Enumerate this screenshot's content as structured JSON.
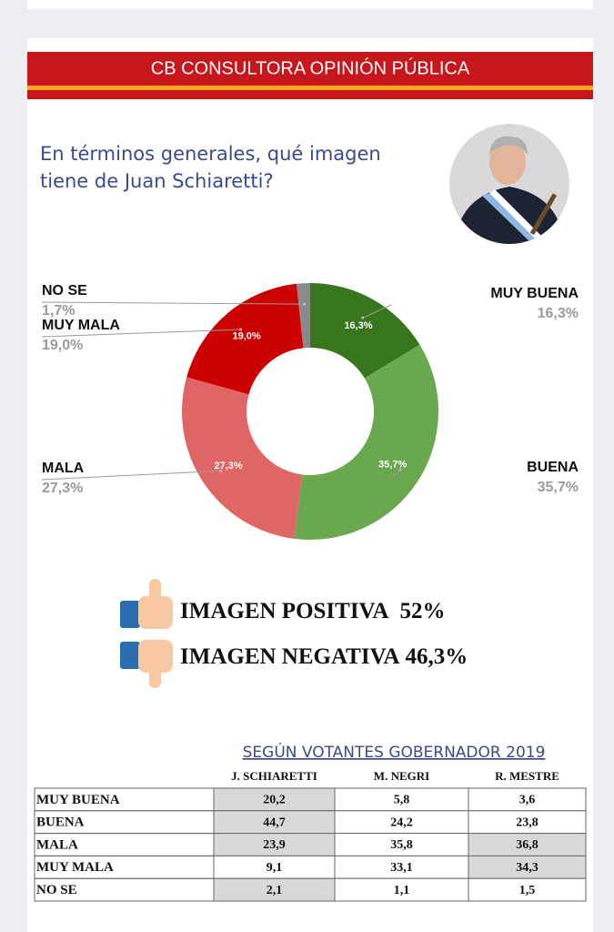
{
  "header": {
    "title": "CB CONSULTORA OPINIÓN PÚBLICA"
  },
  "question": {
    "lines": [
      "En términos generales, qué imagen",
      "tiene de Juan Schiaretti?"
    ]
  },
  "chart_data": {
    "type": "pie",
    "donut": true,
    "categories": [
      "MUY BUENA",
      "BUENA",
      "MALA",
      "MUY MALA",
      "NO SE"
    ],
    "values": [
      16.3,
      35.7,
      27.3,
      19.0,
      1.7
    ],
    "value_labels": [
      "16,3%",
      "35,7%",
      "27,3%",
      "19,0%",
      "1,7%"
    ],
    "colors": [
      "#38761d",
      "#6aa84f",
      "#e06666",
      "#cc0000",
      "#8a8a8a"
    ]
  },
  "summary": [
    {
      "label": "IMAGEN POSITIVA",
      "value": "52%"
    },
    {
      "label": "IMAGEN NEGATIVA",
      "value": "46,3%"
    }
  ],
  "table": {
    "title": "SEGÚN VOTANTES GOBERNADOR 2019",
    "columns": [
      "J. SCHIARETTI",
      "M. NEGRI",
      "R. MESTRE"
    ],
    "rows": [
      {
        "label": "MUY BUENA",
        "cells": [
          "20,2",
          "5,8",
          "3,6"
        ]
      },
      {
        "label": "BUENA",
        "cells": [
          "44,7",
          "24,2",
          "23,8"
        ]
      },
      {
        "label": "MALA",
        "cells": [
          "23,9",
          "35,8",
          "36,8"
        ]
      },
      {
        "label": "MUY MALA",
        "cells": [
          "9,1",
          "33,1",
          "34,3"
        ]
      },
      {
        "label": "NO SE",
        "cells": [
          "2,1",
          "1,1",
          "1,5"
        ]
      }
    ]
  }
}
